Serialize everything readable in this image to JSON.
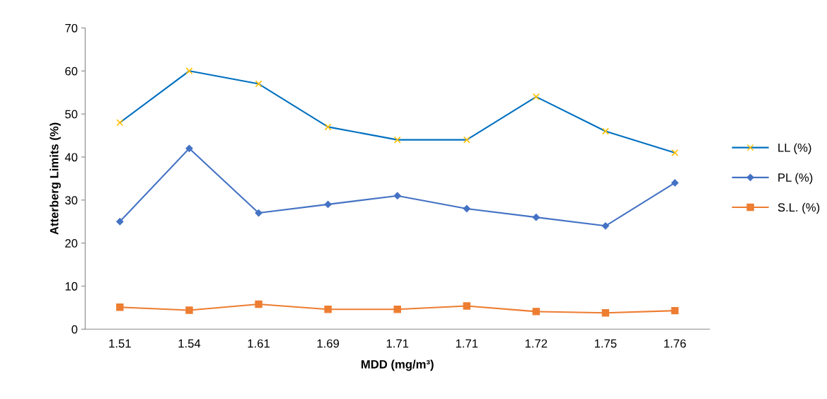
{
  "chart_data": {
    "type": "line",
    "xlabel": "MDD (mg/m³)",
    "ylabel": "Atterberg Limits (%)",
    "categories": [
      "1.51",
      "1.54",
      "1.61",
      "1.69",
      "1.71",
      "1.71",
      "1.72",
      "1.75",
      "1.76"
    ],
    "series": [
      {
        "name": "LL (%)",
        "color": "#0070c0",
        "marker": "cross",
        "colors": [
          "#ffc000",
          "#ffc000",
          "#ffc000",
          "#ffc000",
          "#ffc000",
          "#ffc000",
          "#ffc000",
          "#ffc000",
          "#ffc000"
        ],
        "values": [
          48,
          60,
          57,
          47,
          44,
          44,
          54,
          46,
          41
        ]
      },
      {
        "name": "PL (%)",
        "color": "#4472c4",
        "marker": "diamond",
        "values": [
          25,
          42,
          27,
          29,
          31,
          28,
          26,
          24,
          34
        ]
      },
      {
        "name": "S.L. (%)",
        "color": "#ed7d31",
        "marker": "square",
        "values": [
          5.1,
          4.4,
          5.8,
          4.6,
          4.6,
          5.4,
          4.1,
          3.8,
          4.3
        ]
      }
    ],
    "ylim": [
      0,
      70
    ],
    "yticks": [
      0,
      10,
      20,
      30,
      40,
      50,
      60,
      70
    ],
    "grid": false,
    "legend": "right",
    "line_style": "solid"
  }
}
